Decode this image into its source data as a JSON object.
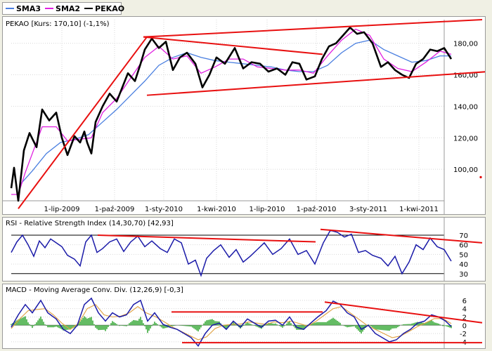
{
  "legend": [
    {
      "label": "SMA3",
      "color": "#4a7fe0"
    },
    {
      "label": "SMA2",
      "color": "#e020e0"
    },
    {
      "label": "PEKAO",
      "color": "#000000"
    }
  ],
  "chart_data": [
    {
      "type": "line",
      "title": "PEKAO [Kurs: 170,10] (-1,1%)",
      "x_ticks": [
        "1-lip-2009",
        "1-paź-2009",
        "1-sty-2010",
        "1-kwi-2010",
        "1-lip-2010",
        "1-paź-2010",
        "3-sty-2011",
        "1-kwi-2011"
      ],
      "y_ticks": [
        "100,00",
        "120,00",
        "140,00",
        "160,00",
        "180,00"
      ],
      "ylim": [
        80,
        195
      ],
      "price_points": [
        [
          0,
          88
        ],
        [
          4,
          101
        ],
        [
          10,
          80
        ],
        [
          18,
          112
        ],
        [
          26,
          123
        ],
        [
          36,
          114
        ],
        [
          44,
          138
        ],
        [
          54,
          131
        ],
        [
          64,
          136
        ],
        [
          72,
          120
        ],
        [
          80,
          109
        ],
        [
          90,
          121
        ],
        [
          98,
          117
        ],
        [
          104,
          124
        ],
        [
          108,
          117
        ],
        [
          114,
          110
        ],
        [
          120,
          130
        ],
        [
          130,
          140
        ],
        [
          140,
          148
        ],
        [
          150,
          143
        ],
        [
          158,
          152
        ],
        [
          166,
          161
        ],
        [
          176,
          156
        ],
        [
          184,
          167
        ],
        [
          190,
          176
        ],
        [
          200,
          183
        ],
        [
          210,
          177
        ],
        [
          220,
          181
        ],
        [
          230,
          163
        ],
        [
          240,
          171
        ],
        [
          250,
          174
        ],
        [
          262,
          167
        ],
        [
          272,
          152
        ],
        [
          282,
          160
        ],
        [
          292,
          171
        ],
        [
          304,
          167
        ],
        [
          318,
          177
        ],
        [
          330,
          164
        ],
        [
          342,
          168
        ],
        [
          354,
          167
        ],
        [
          366,
          162
        ],
        [
          378,
          164
        ],
        [
          390,
          160
        ],
        [
          400,
          168
        ],
        [
          410,
          167
        ],
        [
          420,
          157
        ],
        [
          432,
          159
        ],
        [
          442,
          170
        ],
        [
          452,
          178
        ],
        [
          462,
          180
        ],
        [
          474,
          186
        ],
        [
          482,
          190
        ],
        [
          492,
          186
        ],
        [
          502,
          187
        ],
        [
          514,
          180
        ],
        [
          526,
          165
        ],
        [
          536,
          168
        ],
        [
          546,
          163
        ],
        [
          556,
          160
        ],
        [
          566,
          158
        ],
        [
          576,
          167
        ],
        [
          586,
          170
        ],
        [
          596,
          176
        ],
        [
          606,
          175
        ],
        [
          616,
          177
        ],
        [
          626,
          170
        ]
      ],
      "sma2_points": [
        [
          0,
          84
        ],
        [
          10,
          84
        ],
        [
          20,
          98
        ],
        [
          30,
          110
        ],
        [
          44,
          127
        ],
        [
          64,
          127
        ],
        [
          80,
          118
        ],
        [
          96,
          119
        ],
        [
          114,
          120
        ],
        [
          130,
          136
        ],
        [
          150,
          145
        ],
        [
          170,
          158
        ],
        [
          190,
          171
        ],
        [
          210,
          178
        ],
        [
          230,
          170
        ],
        [
          250,
          172
        ],
        [
          270,
          161
        ],
        [
          290,
          165
        ],
        [
          310,
          170
        ],
        [
          330,
          170
        ],
        [
          350,
          165
        ],
        [
          370,
          164
        ],
        [
          390,
          163
        ],
        [
          410,
          163
        ],
        [
          430,
          161
        ],
        [
          450,
          172
        ],
        [
          470,
          182
        ],
        [
          490,
          189
        ],
        [
          510,
          185
        ],
        [
          530,
          170
        ],
        [
          550,
          164
        ],
        [
          570,
          162
        ],
        [
          590,
          168
        ],
        [
          610,
          175
        ],
        [
          626,
          173
        ]
      ],
      "sma3_points": [
        [
          12,
          90
        ],
        [
          30,
          99
        ],
        [
          50,
          110
        ],
        [
          70,
          117
        ],
        [
          90,
          119
        ],
        [
          110,
          122
        ],
        [
          130,
          130
        ],
        [
          150,
          138
        ],
        [
          170,
          147
        ],
        [
          190,
          156
        ],
        [
          210,
          166
        ],
        [
          230,
          171
        ],
        [
          250,
          174
        ],
        [
          270,
          171
        ],
        [
          290,
          169
        ],
        [
          310,
          168
        ],
        [
          330,
          167
        ],
        [
          350,
          166
        ],
        [
          370,
          165
        ],
        [
          390,
          163
        ],
        [
          410,
          162
        ],
        [
          430,
          162
        ],
        [
          450,
          166
        ],
        [
          470,
          174
        ],
        [
          490,
          180
        ],
        [
          510,
          182
        ],
        [
          530,
          176
        ],
        [
          550,
          172
        ],
        [
          570,
          168
        ],
        [
          590,
          169
        ],
        [
          610,
          172
        ],
        [
          626,
          172
        ]
      ],
      "trend_lines": [
        [
          [
            22,
            75
          ],
          [
            205,
            184
          ]
        ],
        [
          [
            200,
            184
          ],
          [
            682,
            195
          ]
        ],
        [
          [
            200,
            184
          ],
          [
            455,
            173
          ]
        ],
        [
          [
            205,
            147
          ],
          [
            690,
            162
          ]
        ]
      ],
      "markers": [
        {
          "x": 680,
          "y": 95,
          "color": "#e00000"
        }
      ]
    },
    {
      "type": "line",
      "title": "RSI - Relative Strength Index (14,30,70) [42,93]",
      "y_ticks": [
        "30",
        "40",
        "50",
        "60",
        "70"
      ],
      "ylim": [
        24,
        78
      ],
      "rsi_points": [
        [
          0,
          52
        ],
        [
          8,
          63
        ],
        [
          16,
          70
        ],
        [
          24,
          60
        ],
        [
          32,
          48
        ],
        [
          40,
          64
        ],
        [
          48,
          57
        ],
        [
          56,
          66
        ],
        [
          64,
          62
        ],
        [
          72,
          58
        ],
        [
          80,
          49
        ],
        [
          90,
          45
        ],
        [
          98,
          38
        ],
        [
          106,
          63
        ],
        [
          114,
          70
        ],
        [
          122,
          52
        ],
        [
          130,
          56
        ],
        [
          140,
          63
        ],
        [
          150,
          66
        ],
        [
          160,
          53
        ],
        [
          170,
          63
        ],
        [
          180,
          69
        ],
        [
          190,
          58
        ],
        [
          200,
          64
        ],
        [
          212,
          56
        ],
        [
          222,
          52
        ],
        [
          232,
          66
        ],
        [
          242,
          62
        ],
        [
          252,
          40
        ],
        [
          262,
          44
        ],
        [
          270,
          28
        ],
        [
          278,
          46
        ],
        [
          288,
          54
        ],
        [
          298,
          60
        ],
        [
          310,
          47
        ],
        [
          320,
          55
        ],
        [
          330,
          42
        ],
        [
          340,
          48
        ],
        [
          350,
          55
        ],
        [
          360,
          62
        ],
        [
          372,
          50
        ],
        [
          384,
          56
        ],
        [
          396,
          66
        ],
        [
          408,
          50
        ],
        [
          420,
          54
        ],
        [
          432,
          40
        ],
        [
          444,
          62
        ],
        [
          454,
          75
        ],
        [
          464,
          73
        ],
        [
          474,
          68
        ],
        [
          484,
          71
        ],
        [
          494,
          52
        ],
        [
          504,
          54
        ],
        [
          514,
          49
        ],
        [
          526,
          46
        ],
        [
          536,
          38
        ],
        [
          546,
          48
        ],
        [
          556,
          30
        ],
        [
          566,
          42
        ],
        [
          576,
          60
        ],
        [
          586,
          55
        ],
        [
          596,
          67
        ],
        [
          606,
          58
        ],
        [
          616,
          55
        ],
        [
          626,
          43
        ]
      ],
      "trend_lines": [
        [
          [
            135,
            70
          ],
          [
            445,
            63
          ]
        ],
        [
          [
            452,
            76
          ],
          [
            682,
            62
          ]
        ]
      ]
    },
    {
      "type": "line",
      "title": "MACD - Moving Average Conv. Div. (12,26,9) [-0,3]",
      "y_ticks": [
        "-4",
        "-2",
        "0",
        "2",
        "4",
        "6"
      ],
      "ylim": [
        -5.2,
        7.5
      ],
      "macd_points": [
        [
          0,
          -0.5
        ],
        [
          10,
          2.5
        ],
        [
          20,
          5
        ],
        [
          30,
          3
        ],
        [
          42,
          6
        ],
        [
          52,
          3
        ],
        [
          64,
          1.5
        ],
        [
          74,
          -1
        ],
        [
          84,
          -2
        ],
        [
          94,
          0
        ],
        [
          104,
          5
        ],
        [
          114,
          6.5
        ],
        [
          124,
          3
        ],
        [
          134,
          1
        ],
        [
          144,
          3
        ],
        [
          154,
          2
        ],
        [
          164,
          2.5
        ],
        [
          174,
          5
        ],
        [
          184,
          6
        ],
        [
          194,
          1
        ],
        [
          204,
          3
        ],
        [
          216,
          0.2
        ],
        [
          226,
          -0.5
        ],
        [
          236,
          -1
        ],
        [
          246,
          -2
        ],
        [
          256,
          -3
        ],
        [
          266,
          -5
        ],
        [
          276,
          -2
        ],
        [
          286,
          0
        ],
        [
          296,
          0.5
        ],
        [
          306,
          -1
        ],
        [
          316,
          1
        ],
        [
          326,
          -0.5
        ],
        [
          336,
          1.5
        ],
        [
          346,
          0.5
        ],
        [
          356,
          -0.5
        ],
        [
          366,
          1
        ],
        [
          376,
          1.2
        ],
        [
          386,
          0
        ],
        [
          396,
          2
        ],
        [
          406,
          -0.5
        ],
        [
          416,
          -1
        ],
        [
          426,
          0.5
        ],
        [
          436,
          2
        ],
        [
          448,
          3.5
        ],
        [
          458,
          5.8
        ],
        [
          468,
          5
        ],
        [
          478,
          3
        ],
        [
          488,
          2
        ],
        [
          498,
          -1
        ],
        [
          508,
          0
        ],
        [
          518,
          -2
        ],
        [
          528,
          -3
        ],
        [
          538,
          -4
        ],
        [
          548,
          -3.5
        ],
        [
          558,
          -2
        ],
        [
          568,
          -1
        ],
        [
          578,
          0.5
        ],
        [
          588,
          1
        ],
        [
          598,
          2.5
        ],
        [
          608,
          2
        ],
        [
          618,
          1
        ],
        [
          626,
          -0.3
        ]
      ],
      "signal_points": [
        [
          0,
          -0.8
        ],
        [
          12,
          1.5
        ],
        [
          24,
          3.5
        ],
        [
          36,
          3.8
        ],
        [
          48,
          4
        ],
        [
          60,
          2.5
        ],
        [
          72,
          0.5
        ],
        [
          84,
          -1
        ],
        [
          96,
          0.5
        ],
        [
          108,
          4
        ],
        [
          120,
          5
        ],
        [
          132,
          2.5
        ],
        [
          144,
          2
        ],
        [
          156,
          2.2
        ],
        [
          168,
          3
        ],
        [
          180,
          4.5
        ],
        [
          192,
          3
        ],
        [
          206,
          2
        ],
        [
          218,
          0.8
        ],
        [
          230,
          -0.5
        ],
        [
          242,
          -1.5
        ],
        [
          254,
          -2.5
        ],
        [
          266,
          -3.5
        ],
        [
          278,
          -2.8
        ],
        [
          290,
          -0.8
        ],
        [
          302,
          0
        ],
        [
          314,
          0.2
        ],
        [
          326,
          0.3
        ],
        [
          338,
          0.8
        ],
        [
          350,
          0.5
        ],
        [
          362,
          0.2
        ],
        [
          374,
          0.8
        ],
        [
          386,
          0.6
        ],
        [
          398,
          1
        ],
        [
          410,
          0.4
        ],
        [
          422,
          -0.2
        ],
        [
          434,
          1
        ],
        [
          446,
          2.5
        ],
        [
          458,
          4
        ],
        [
          470,
          4.5
        ],
        [
          482,
          3
        ],
        [
          494,
          1.5
        ],
        [
          506,
          0
        ],
        [
          518,
          -1
        ],
        [
          530,
          -2
        ],
        [
          542,
          -3
        ],
        [
          554,
          -2.6
        ],
        [
          566,
          -1.5
        ],
        [
          578,
          -0.3
        ],
        [
          590,
          0.6
        ],
        [
          602,
          1.6
        ],
        [
          614,
          1.6
        ],
        [
          626,
          0.4
        ]
      ],
      "trend_lines": [
        [
          [
            240,
            3.2
          ],
          [
            455,
            3.2
          ]
        ],
        [
          [
            458,
            5.6
          ],
          [
            682,
            0.6
          ]
        ],
        [
          [
            255,
            -4.2
          ],
          [
            682,
            -4.2
          ]
        ]
      ]
    }
  ]
}
